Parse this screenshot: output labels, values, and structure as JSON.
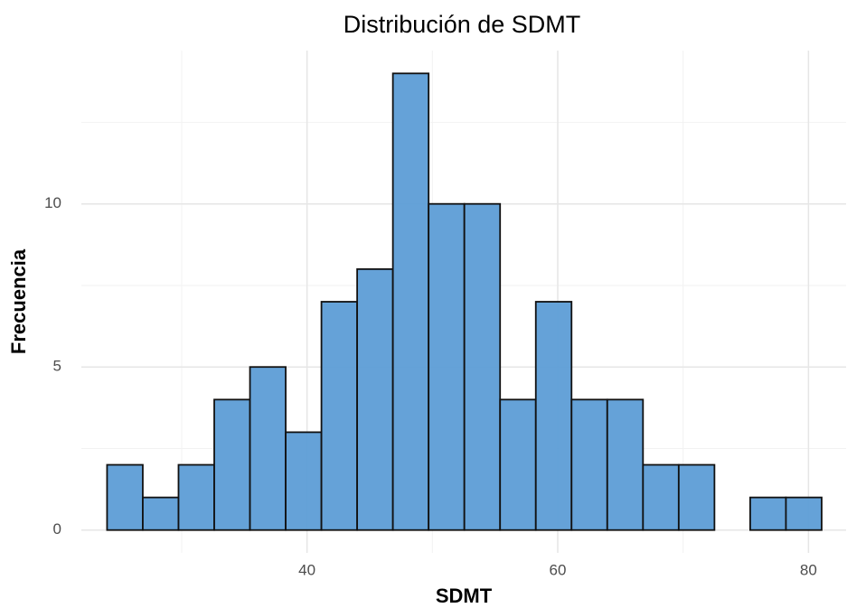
{
  "chart_data": {
    "type": "histogram",
    "title": "Distribución de SDMT",
    "x_label": "SDMT",
    "y_label": "Frecuencia",
    "bins": [
      24.05,
      26.9,
      29.75,
      32.6,
      35.45,
      38.3,
      41.15,
      44.0,
      46.85,
      49.7,
      52.55,
      55.4,
      58.25,
      61.1,
      63.95,
      66.8,
      69.65,
      72.5,
      75.35,
      78.2,
      81.05
    ],
    "values": [
      2,
      1,
      2,
      4,
      5,
      3,
      7,
      8,
      14,
      10,
      10,
      4,
      7,
      4,
      4,
      2,
      2,
      0,
      1,
      1
    ],
    "color": "#5d9dd6",
    "edge_color": "#111111",
    "xlim": [
      22,
      83
    ],
    "ylim": [
      -0.7,
      14.7
    ],
    "xticks": [
      40,
      60,
      80
    ],
    "yticks": [
      0,
      5,
      10
    ],
    "xminor": [
      30,
      50,
      70
    ],
    "yminor": [
      2.5,
      7.5,
      12.5
    ],
    "grid": true
  }
}
